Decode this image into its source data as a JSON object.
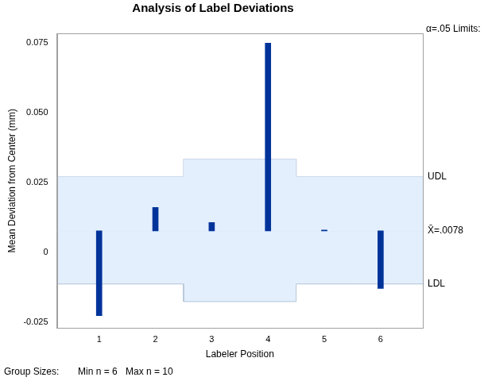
{
  "chart_data": {
    "type": "bar",
    "title": "Analysis of Label Deviations",
    "x_label": "Labeler Position",
    "y_label": "Mean Deviation from Center (mm)",
    "categories": [
      1,
      2,
      3,
      4,
      5,
      6
    ],
    "values": [
      -0.0225,
      0.0162,
      0.0108,
      0.075,
      0.0081,
      -0.0128
    ],
    "color": "#00339a",
    "center": 0.0078,
    "center_label": "X̄=.0078",
    "udl": [
      0.0272,
      0.0272,
      0.0335,
      0.0335,
      0.0272,
      0.0272
    ],
    "ldl": [
      -0.0112,
      -0.0112,
      -0.0175,
      -0.0175,
      -0.0112,
      -0.0112
    ],
    "udl_label": "UDL",
    "ldl_label": "LDL",
    "limits_label": "α=.05 Limits:",
    "footer": [
      "Group Sizes:",
      "Min n = 6",
      "Max n = 10"
    ],
    "xlim": [
      0.25,
      6.75
    ],
    "xticks": [
      1,
      2,
      3,
      4,
      5,
      6
    ],
    "ylim": [
      -0.027,
      0.0785
    ],
    "yticks": [
      -0.025,
      0,
      0.025,
      {
        "value": 0.05,
        "label": "0.050"
      },
      0.075
    ],
    "grid": false
  }
}
